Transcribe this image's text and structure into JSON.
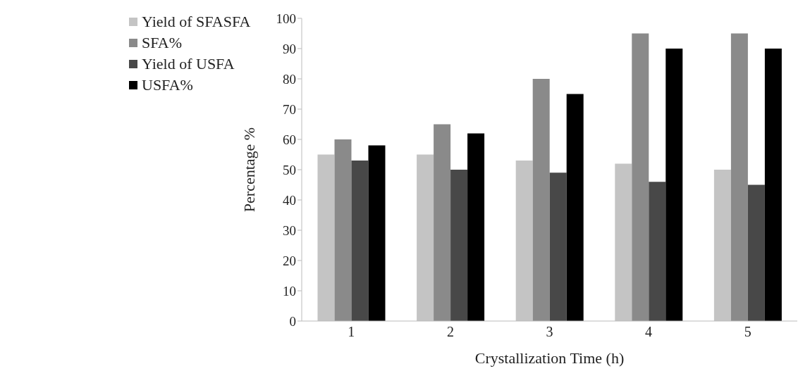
{
  "chart_data": {
    "type": "bar",
    "xlabel": "Crystallization Time (h)",
    "ylabel": "Percentage %",
    "categories": [
      "1",
      "2",
      "3",
      "4",
      "5"
    ],
    "series": [
      {
        "name": "Yield of SFASFA",
        "color": "#c4c4c4",
        "values": [
          55,
          55,
          53,
          52,
          50
        ]
      },
      {
        "name": "SFA%",
        "color": "#8a8a8a",
        "values": [
          60,
          65,
          80,
          95,
          95
        ]
      },
      {
        "name": "Yield of USFA",
        "color": "#484848",
        "values": [
          53,
          50,
          49,
          46,
          45
        ]
      },
      {
        "name": "USFA%",
        "color": "#000000",
        "values": [
          58,
          62,
          75,
          90,
          90
        ]
      }
    ],
    "ylim": [
      0,
      100
    ],
    "yticks": [
      0,
      10,
      20,
      30,
      40,
      50,
      60,
      70,
      80,
      90,
      100
    ],
    "grid": false,
    "legend": "top left"
  }
}
